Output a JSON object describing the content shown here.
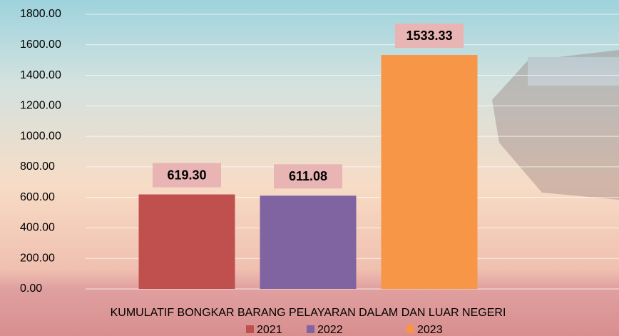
{
  "chart_data": {
    "type": "bar",
    "categories": [
      "KUMULATIF BONGKAR BARANG PELAYARAN DALAM DAN LUAR NEGERI"
    ],
    "series": [
      {
        "name": "2021",
        "color": "#c0504d",
        "values": [
          619.3
        ],
        "value_labels": [
          "619.30"
        ]
      },
      {
        "name": "2022",
        "color": "#8064a2",
        "values": [
          611.08
        ],
        "value_labels": [
          "611.08"
        ]
      },
      {
        "name": "2023",
        "color": "#f79646",
        "values": [
          1533.33
        ],
        "value_labels": [
          "1533.33"
        ]
      }
    ],
    "ylim": [
      0,
      1800
    ],
    "yticks": [
      {
        "value": 0,
        "label": "0.00"
      },
      {
        "value": 200,
        "label": "200.00"
      },
      {
        "value": 400,
        "label": "400.00"
      },
      {
        "value": 600,
        "label": "600.00"
      },
      {
        "value": 800,
        "label": "800.00"
      },
      {
        "value": 1000,
        "label": "1000.00"
      },
      {
        "value": 1200,
        "label": "1200.00"
      },
      {
        "value": 1400,
        "label": "1400.00"
      },
      {
        "value": 1600,
        "label": "1600.00"
      },
      {
        "value": 1800,
        "label": "1800.00"
      }
    ],
    "grid": true,
    "legend": "bottom"
  }
}
